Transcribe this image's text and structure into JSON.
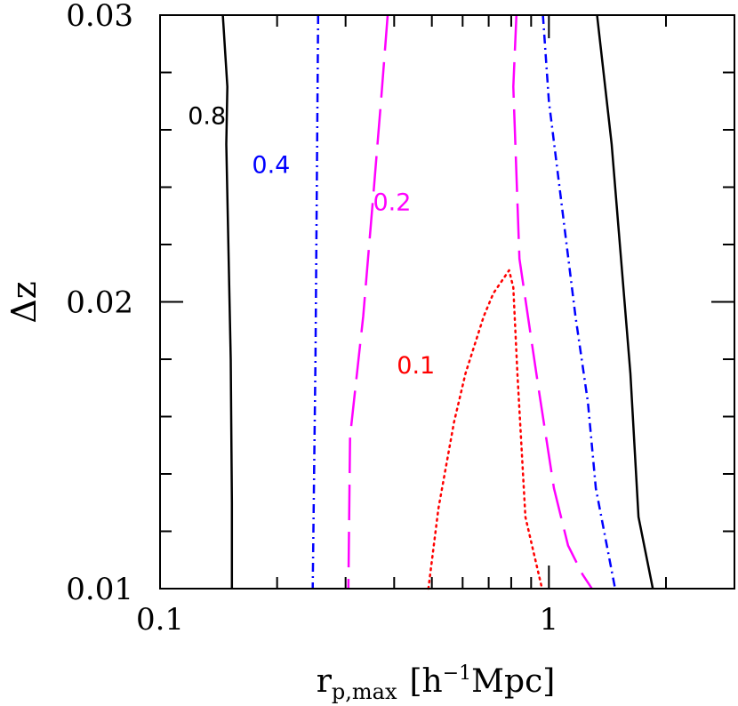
{
  "chart_data": {
    "type": "line",
    "subtype": "contour",
    "title": "",
    "xlabel": {
      "main": "r",
      "subscript": "p,max",
      "unit_open": "[h",
      "unit_exp": "−1",
      "unit_close": "Mpc]"
    },
    "ylabel": "Δz",
    "x_scale": "log",
    "xlim": [
      0.1,
      3.0
    ],
    "ylim": [
      0.01,
      0.03
    ],
    "x_ticks": [
      {
        "value": 0.1,
        "label": "0.1"
      },
      {
        "value": 1,
        "label": "1"
      }
    ],
    "y_ticks": [
      {
        "value": 0.01,
        "label": "0.01"
      },
      {
        "value": 0.02,
        "label": "0.02"
      },
      {
        "value": 0.03,
        "label": "0.03"
      }
    ],
    "x_minor_ticks": [
      0.2,
      0.3,
      0.4,
      0.5,
      0.6,
      0.7,
      0.8,
      0.9,
      2,
      3
    ],
    "y_minor_ticks": [
      0.012,
      0.014,
      0.016,
      0.018,
      0.022,
      0.024,
      0.026,
      0.028
    ],
    "grid": false,
    "series": [
      {
        "name": "0.8",
        "color": "#000000",
        "dash": "solid",
        "segments": [
          [
            [
              0.145,
              0.03
            ],
            [
              0.149,
              0.0275
            ],
            [
              0.148,
              0.0255
            ],
            [
              0.152,
              0.018
            ],
            [
              0.153,
              0.013
            ],
            [
              0.153,
              0.01
            ]
          ],
          [
            [
              1.33,
              0.03
            ],
            [
              1.45,
              0.0255
            ],
            [
              1.62,
              0.0175
            ],
            [
              1.7,
              0.0125
            ],
            [
              1.85,
              0.01
            ]
          ]
        ],
        "label": {
          "text": "0.8",
          "at": [
            0.132,
            0.0262
          ]
        }
      },
      {
        "name": "0.4",
        "color": "#0000ff",
        "dash": "dashdot",
        "segments": [
          [
            [
              0.255,
              0.03
            ],
            [
              0.253,
              0.024
            ],
            [
              0.251,
              0.018
            ],
            [
              0.247,
              0.01
            ]
          ],
          [
            [
              0.965,
              0.03
            ],
            [
              1.0,
              0.027
            ],
            [
              1.17,
              0.0195
            ],
            [
              1.26,
              0.0165
            ],
            [
              1.32,
              0.0135
            ],
            [
              1.48,
              0.01
            ]
          ]
        ],
        "label": {
          "text": "0.4",
          "at": [
            0.193,
            0.0245
          ]
        }
      },
      {
        "name": "0.2",
        "color": "#ff00ff",
        "dash": "longdash",
        "segments": [
          [
            [
              0.385,
              0.03
            ],
            [
              0.37,
              0.027
            ],
            [
              0.355,
              0.024
            ],
            [
              0.333,
              0.0195
            ],
            [
              0.308,
              0.0153
            ],
            [
              0.305,
              0.01
            ]
          ],
          [
            [
              0.825,
              0.03
            ],
            [
              0.81,
              0.0275
            ],
            [
              0.84,
              0.0215
            ],
            [
              0.94,
              0.017
            ],
            [
              1.03,
              0.0135
            ],
            [
              1.12,
              0.0115
            ],
            [
              1.22,
              0.0105
            ],
            [
              1.29,
              0.01
            ]
          ]
        ],
        "label": {
          "text": "0.2",
          "at": [
            0.395,
            0.0232
          ]
        }
      },
      {
        "name": "0.1",
        "color": "#ff0000",
        "dash": "dotted",
        "segments": [
          [
            [
              0.49,
              0.01
            ],
            [
              0.52,
              0.0128
            ],
            [
              0.57,
              0.0158
            ],
            [
              0.61,
              0.0175
            ],
            [
              0.68,
              0.0195
            ],
            [
              0.72,
              0.0203
            ],
            [
              0.79,
              0.0211
            ],
            [
              0.81,
              0.0205
            ],
            [
              0.83,
              0.0175
            ],
            [
              0.87,
              0.0125
            ],
            [
              0.96,
              0.01
            ]
          ]
        ],
        "label": {
          "text": "0.1",
          "at": [
            0.455,
            0.0175
          ]
        }
      }
    ]
  }
}
